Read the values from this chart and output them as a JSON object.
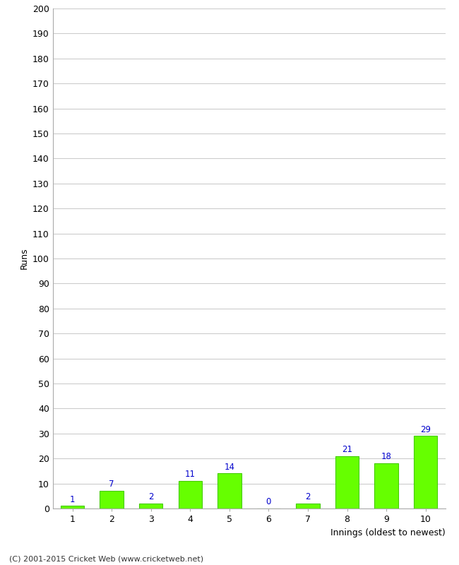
{
  "categories": [
    "1",
    "2",
    "3",
    "4",
    "5",
    "6",
    "7",
    "8",
    "9",
    "10"
  ],
  "values": [
    1,
    7,
    2,
    11,
    14,
    0,
    2,
    21,
    18,
    29
  ],
  "bar_color": "#66ff00",
  "bar_edge_color": "#44cc00",
  "label_color": "#0000cc",
  "xlabel": "Innings (oldest to newest)",
  "ylabel": "Runs",
  "ylim": [
    0,
    200
  ],
  "yticks": [
    0,
    10,
    20,
    30,
    40,
    50,
    60,
    70,
    80,
    90,
    100,
    110,
    120,
    130,
    140,
    150,
    160,
    170,
    180,
    190,
    200
  ],
  "footer": "(C) 2001-2015 Cricket Web (www.cricketweb.net)",
  "background_color": "#ffffff",
  "grid_color": "#cccccc"
}
